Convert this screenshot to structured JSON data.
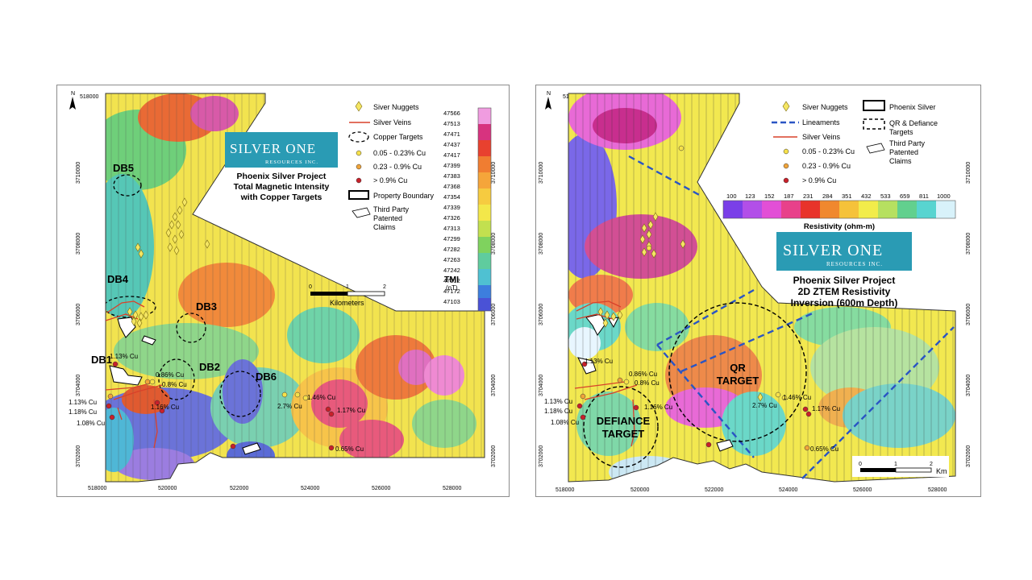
{
  "colors": {
    "silver_nugget": "#f5e663",
    "silver_vein": "#d9412a",
    "cu_low": "#f7e14a",
    "cu_mid": "#f0a43a",
    "cu_high": "#c8202a",
    "lineament": "#2a55c4",
    "logo_bg": "#2a9bb4"
  },
  "left": {
    "north": "N",
    "x_ticks_top": [
      "518000",
      "520000",
      "522000",
      "524000",
      "526000",
      "528000"
    ],
    "x_ticks_bottom": [
      "518000",
      "520000",
      "522000",
      "524000",
      "526000",
      "528000"
    ],
    "y_ticks_left": [
      "3710000",
      "3708000",
      "3706000",
      "3704000",
      "3702000"
    ],
    "y_ticks_right": [
      "3710000",
      "3708000",
      "3706000",
      "3704000",
      "3702000"
    ],
    "logo_main": "SILVER ONE",
    "logo_sub": "RESOURCES INC.",
    "title": [
      "Phoenix Silver Project",
      "Total Magnetic Intensity",
      "with Copper Targets"
    ],
    "legend": {
      "silver_nuggets": "Siver Nuggets",
      "silver_veins": "Silver Veins",
      "copper_targets": "Copper Targets",
      "cu_low": "0.05 - 0.23% Cu",
      "cu_mid": "0.23 - 0.9% Cu",
      "cu_high": "> 0.9% Cu",
      "property_boundary": "Property Boundary",
      "third_party": [
        "Third Party",
        "Patented",
        "Claims"
      ]
    },
    "colorbar": {
      "values": [
        "47566",
        "47513",
        "47471",
        "47437",
        "47417",
        "47399",
        "47383",
        "47368",
        "47354",
        "47339",
        "47326",
        "47313",
        "47299",
        "47282",
        "47263",
        "47242",
        "47212",
        "47172",
        "47103"
      ],
      "title": "TMI",
      "unit": "(nT)"
    },
    "scale": {
      "ticks": [
        "0",
        "1",
        "2"
      ],
      "unit": "Kilometers"
    },
    "targets": {
      "db5": "DB5",
      "db4": "DB4",
      "db3": "DB3",
      "db2": "DB2",
      "db6": "DB6",
      "db1": "DB1"
    },
    "assays": {
      "a1": "1.13% Cu",
      "a2": "0.86% Cu",
      "a3": "0.8% Cu",
      "a4": "1.13% Cu",
      "a5": "1.18% Cu",
      "a6": "1.08% Cu",
      "a7": "1.16% Cu",
      "a8": "2.7% Cu",
      "a9": "1.46% Cu",
      "a10": "1.17% Cu",
      "a11": "0.65% Cu"
    }
  },
  "right": {
    "north": "N",
    "x_ticks_top": [
      "518000",
      "520000",
      "522000",
      "524000",
      "526000",
      "528000"
    ],
    "x_ticks_bottom": [
      "518000",
      "520000",
      "522000",
      "524000",
      "526000",
      "528000"
    ],
    "y_ticks_left": [
      "3710000",
      "3708000",
      "3706000",
      "3704000",
      "3702000"
    ],
    "y_ticks_right": [
      "3710000",
      "3708000",
      "3706000",
      "3704000",
      "3702000"
    ],
    "legend": {
      "silver_nuggets": "Siver Nuggets",
      "lineaments": "Lineaments",
      "silver_veins": "Silver Veins",
      "cu_low": "0.05 - 0.23% Cu",
      "cu_mid": "0.23 - 0.9% Cu",
      "cu_high": "> 0.9% Cu",
      "phoenix_silver": "Phoenix Silver",
      "qr_defiance": [
        "QR & Defiance",
        "Targets"
      ],
      "third_party": [
        "Third Party",
        "Patented",
        "Claims"
      ]
    },
    "colorbar": {
      "values": [
        "100",
        "123",
        "152",
        "187",
        "231",
        "284",
        "351",
        "432",
        "533",
        "659",
        "811",
        "1000"
      ],
      "title": "Resistivity (ohm-m)"
    },
    "logo_main": "SILVER ONE",
    "logo_sub": "RESOURCES INC.",
    "title": [
      "Phoenix Silver Project",
      "2D ZTEM Resistivity",
      "Inversion (600m Depth)"
    ],
    "scale": {
      "ticks": [
        "0",
        "1",
        "2"
      ],
      "unit": "Km"
    },
    "targets": {
      "qr1": "QR",
      "qr2": "TARGET",
      "def1": "DEFIANCE",
      "def2": "TARGET"
    },
    "assays": {
      "a1": "1.13% Cu",
      "a2": "0.86% Cu",
      "a3": "0.8% Cu",
      "a4": "1.13% Cu",
      "a5": "1.18% Cu",
      "a6": "1.08% Cu",
      "a7": "1.16% Cu",
      "a8": "2.7% Cu",
      "a9": "1.46% Cu",
      "a10": "1.17% Cu",
      "a11": "0.65% Cu"
    }
  }
}
